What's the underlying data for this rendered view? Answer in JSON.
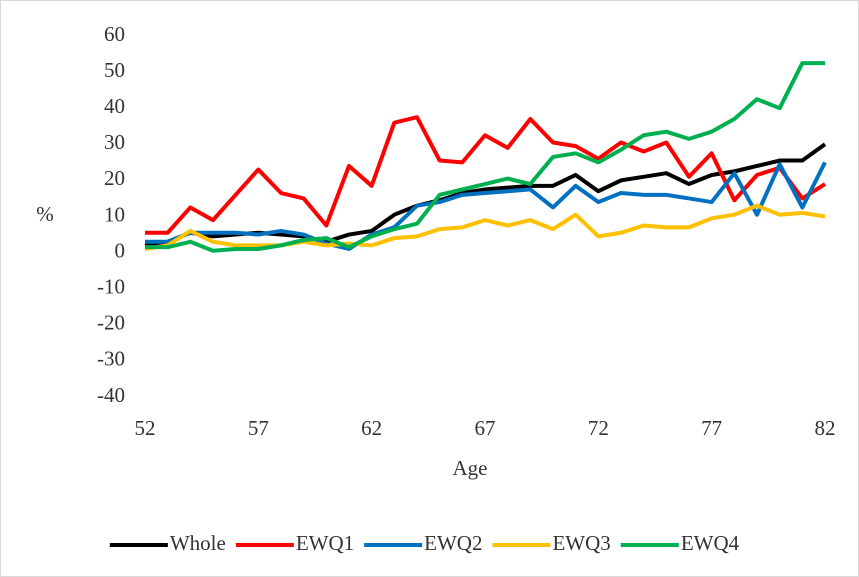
{
  "chart_data": {
    "type": "line",
    "x_label": "Age",
    "y_label": "%",
    "x": [
      52,
      53,
      54,
      55,
      56,
      57,
      58,
      59,
      60,
      61,
      62,
      63,
      64,
      65,
      66,
      67,
      68,
      69,
      70,
      71,
      72,
      73,
      74,
      75,
      76,
      77,
      78,
      79,
      80,
      81,
      82
    ],
    "series": [
      {
        "name": "Whole",
        "color": "#000000",
        "values": [
          2,
          3,
          5.5,
          4.5,
          5,
          5.5,
          5,
          4.5,
          3,
          5,
          6,
          10.5,
          13,
          14.5,
          16.5,
          17.5,
          18,
          18.5,
          18.5,
          21.5,
          17,
          20,
          21,
          22,
          19,
          21.5,
          22.5,
          24,
          25.5,
          25.5,
          30
        ]
      },
      {
        "name": "EWQ1",
        "color": "#ff0000",
        "values": [
          5.5,
          5.5,
          12.5,
          9,
          16,
          23,
          16.5,
          15,
          7.5,
          24,
          18.5,
          36,
          37.5,
          25.5,
          25,
          32.5,
          29,
          37,
          30.5,
          29.5,
          26,
          30.5,
          28,
          30.5,
          21,
          27.5,
          14.5,
          21.5,
          23.5,
          15,
          19
        ]
      },
      {
        "name": "EWQ2",
        "color": "#0070c0",
        "values": [
          3,
          3,
          5.5,
          5.5,
          5.5,
          5,
          6,
          5,
          2.5,
          1,
          5,
          7,
          13,
          14,
          16,
          16.5,
          17,
          17.5,
          12.5,
          18.5,
          14,
          16.5,
          16,
          16,
          15,
          14,
          22,
          10.5,
          24.5,
          12.5,
          25
        ]
      },
      {
        "name": "EWQ3",
        "color": "#ffc000",
        "values": [
          1,
          2,
          6,
          3,
          2,
          2,
          2,
          3,
          2,
          2.5,
          2,
          4,
          4.5,
          6.5,
          7,
          9,
          7.5,
          9,
          6.5,
          10.5,
          4.5,
          5.5,
          7.5,
          7,
          7,
          9.5,
          10.5,
          13,
          10.5,
          11,
          10
        ]
      },
      {
        "name": "EWQ4",
        "color": "#00b050",
        "values": [
          1.5,
          1.5,
          3,
          0.5,
          1,
          1,
          2,
          3.5,
          4,
          1.5,
          4.5,
          6.5,
          8,
          16,
          17.5,
          19,
          20.5,
          19,
          26.5,
          27.5,
          25,
          28.5,
          32.5,
          33.5,
          31.5,
          33.5,
          37,
          42.5,
          40,
          52.5,
          52.5
        ]
      }
    ],
    "xlim": [
      52,
      82
    ],
    "xticks": [
      52,
      57,
      62,
      67,
      72,
      77,
      82
    ],
    "ylim": [
      -40,
      60
    ],
    "yticks": [
      -40,
      -30,
      -20,
      -10,
      0,
      10,
      20,
      30,
      40,
      50,
      60
    ],
    "grid": false,
    "legend": "bottom"
  }
}
